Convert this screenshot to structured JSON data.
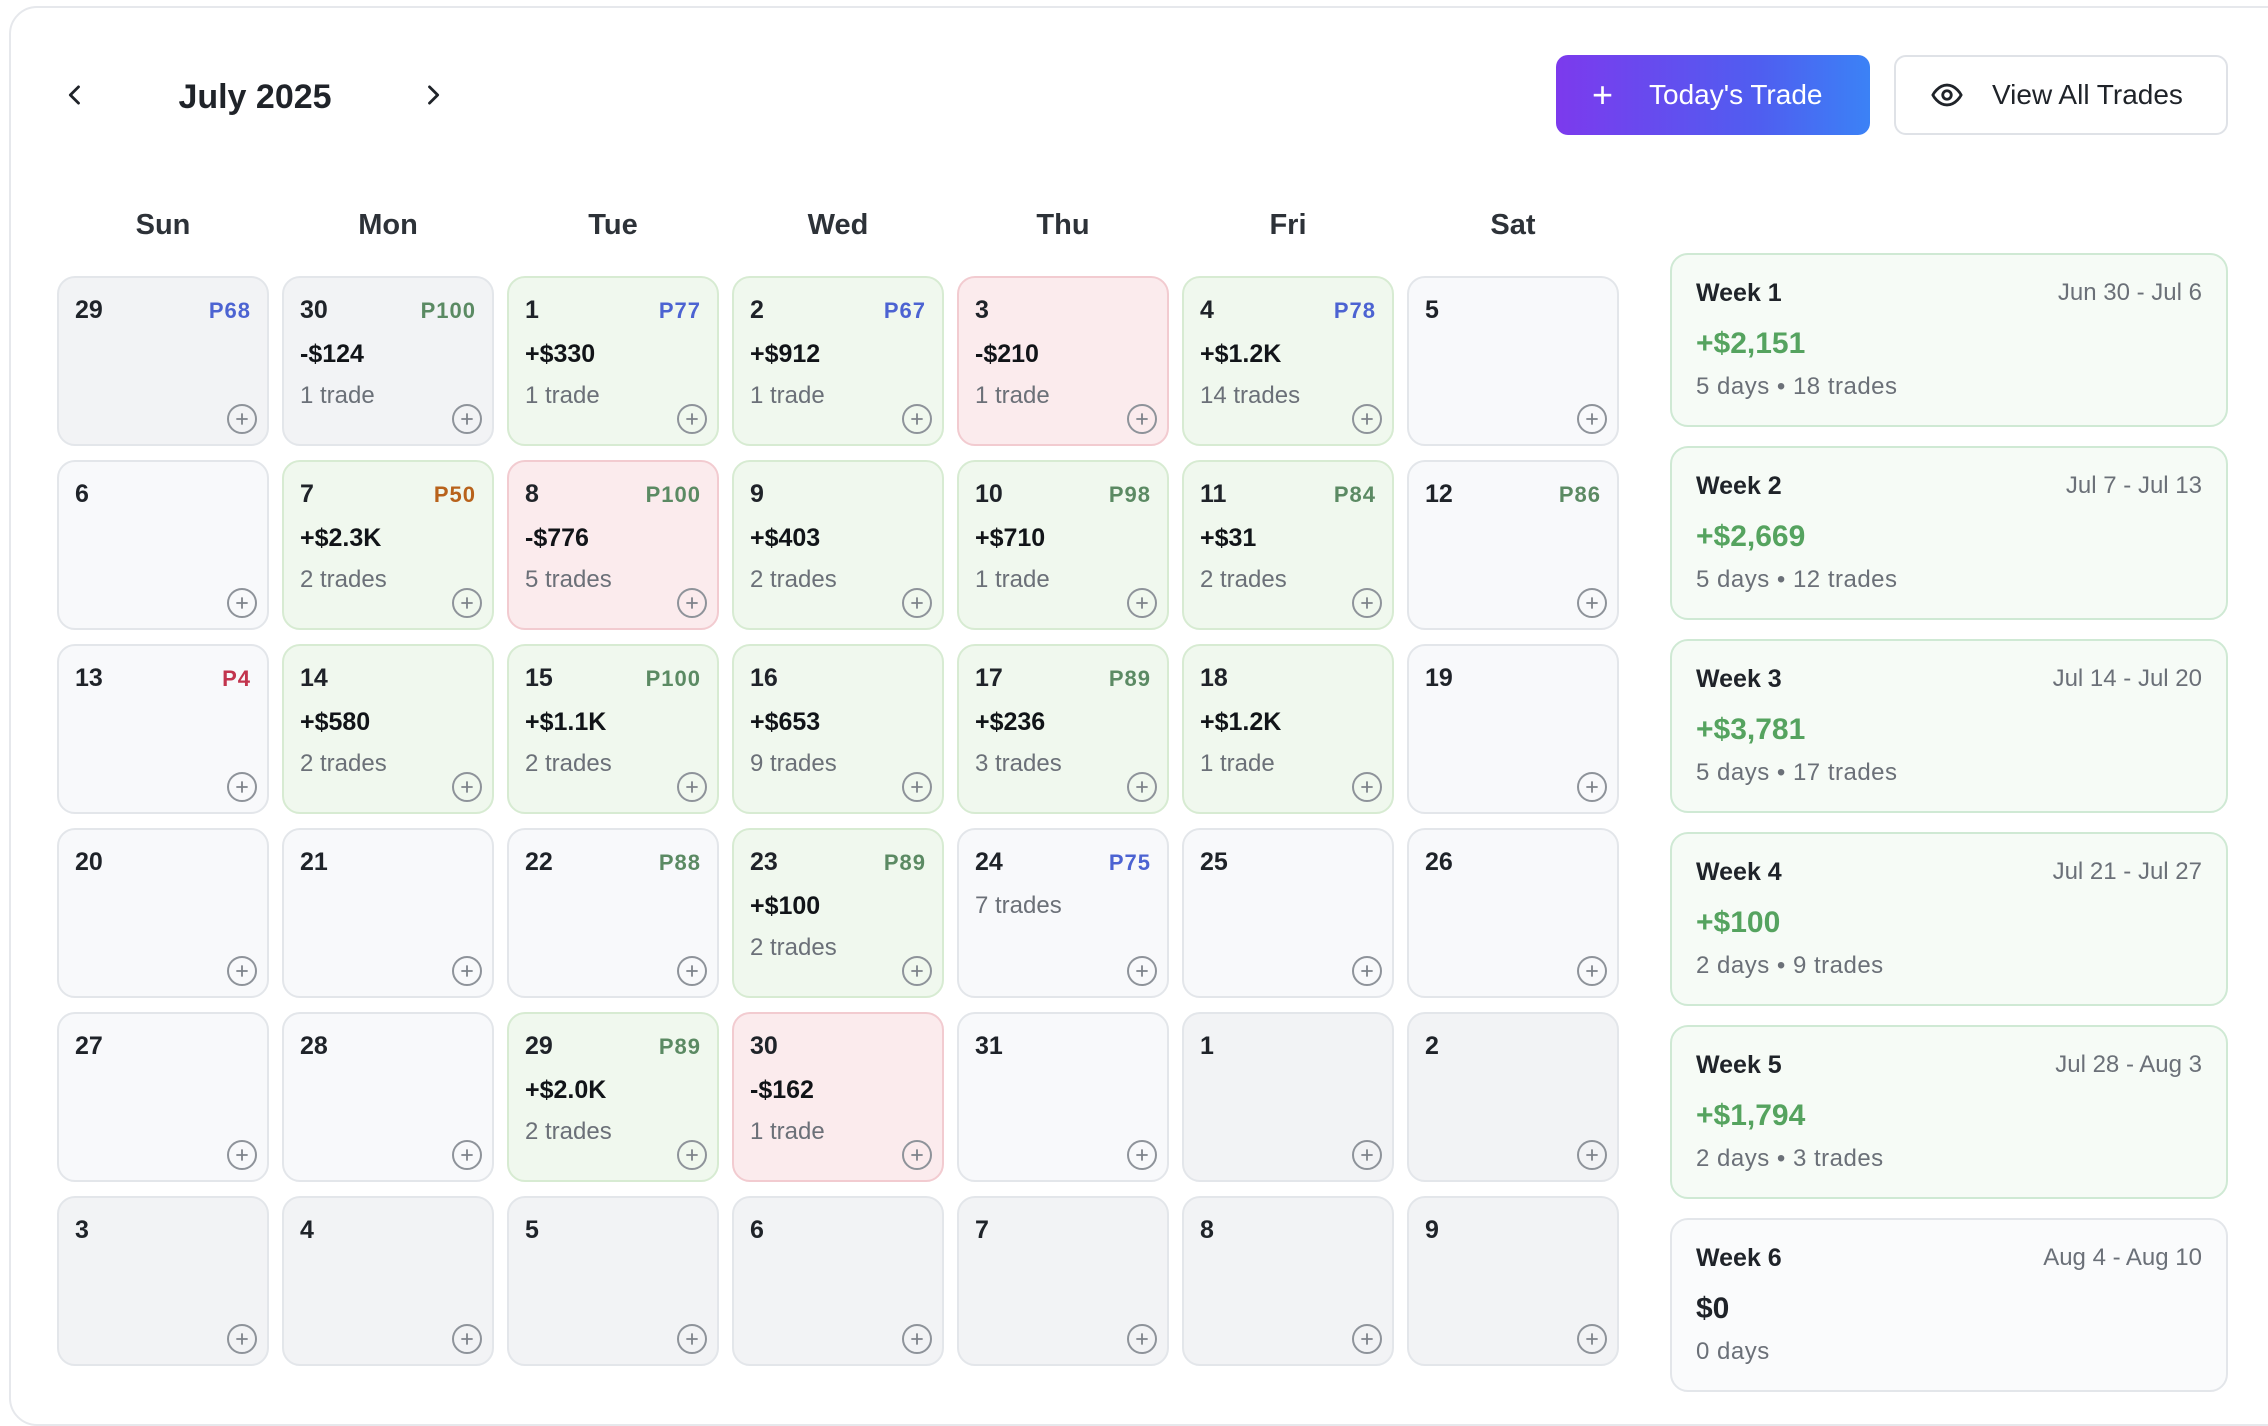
{
  "header": {
    "month_title": "July 2025",
    "todays_trade_label": "Today's Trade",
    "view_all_label": "View All Trades"
  },
  "weekdays": [
    "Sun",
    "Mon",
    "Tue",
    "Wed",
    "Thu",
    "Fri",
    "Sat"
  ],
  "colors": {
    "win_bg": "#f0f8ee",
    "loss_bg": "#fbebed",
    "positive_text": "#55a35f",
    "primary_gradient_start": "#7c3aed",
    "primary_gradient_end": "#3b82f6"
  },
  "calendar": {
    "rows": [
      [
        {
          "day": "29",
          "badge": "P68",
          "badge_color": "blue",
          "pnl": "",
          "trades": "",
          "status": "other"
        },
        {
          "day": "30",
          "badge": "P100",
          "badge_color": "green",
          "pnl": "-$124",
          "trades": "1 trade",
          "status": "other"
        },
        {
          "day": "1",
          "badge": "P77",
          "badge_color": "blue",
          "pnl": "+$330",
          "trades": "1 trade",
          "status": "win"
        },
        {
          "day": "2",
          "badge": "P67",
          "badge_color": "blue",
          "pnl": "+$912",
          "trades": "1 trade",
          "status": "win"
        },
        {
          "day": "3",
          "badge": "",
          "badge_color": "",
          "pnl": "-$210",
          "trades": "1 trade",
          "status": "loss"
        },
        {
          "day": "4",
          "badge": "P78",
          "badge_color": "blue",
          "pnl": "+$1.2K",
          "trades": "14 trades",
          "status": "win"
        },
        {
          "day": "5",
          "badge": "",
          "badge_color": "",
          "pnl": "",
          "trades": "",
          "status": "empty"
        }
      ],
      [
        {
          "day": "6",
          "badge": "",
          "badge_color": "",
          "pnl": "",
          "trades": "",
          "status": "empty"
        },
        {
          "day": "7",
          "badge": "P50",
          "badge_color": "orange",
          "pnl": "+$2.3K",
          "trades": "2 trades",
          "status": "win"
        },
        {
          "day": "8",
          "badge": "P100",
          "badge_color": "green",
          "pnl": "-$776",
          "trades": "5 trades",
          "status": "loss"
        },
        {
          "day": "9",
          "badge": "",
          "badge_color": "",
          "pnl": "+$403",
          "trades": "2 trades",
          "status": "win"
        },
        {
          "day": "10",
          "badge": "P98",
          "badge_color": "green",
          "pnl": "+$710",
          "trades": "1 trade",
          "status": "win"
        },
        {
          "day": "11",
          "badge": "P84",
          "badge_color": "green",
          "pnl": "+$31",
          "trades": "2 trades",
          "status": "win"
        },
        {
          "day": "12",
          "badge": "P86",
          "badge_color": "green",
          "pnl": "",
          "trades": "",
          "status": "empty"
        }
      ],
      [
        {
          "day": "13",
          "badge": "P4",
          "badge_color": "red",
          "pnl": "",
          "trades": "",
          "status": "empty"
        },
        {
          "day": "14",
          "badge": "",
          "badge_color": "",
          "pnl": "+$580",
          "trades": "2 trades",
          "status": "win"
        },
        {
          "day": "15",
          "badge": "P100",
          "badge_color": "green",
          "pnl": "+$1.1K",
          "trades": "2 trades",
          "status": "win"
        },
        {
          "day": "16",
          "badge": "",
          "badge_color": "",
          "pnl": "+$653",
          "trades": "9 trades",
          "status": "win"
        },
        {
          "day": "17",
          "badge": "P89",
          "badge_color": "green",
          "pnl": "+$236",
          "trades": "3 trades",
          "status": "win"
        },
        {
          "day": "18",
          "badge": "",
          "badge_color": "",
          "pnl": "+$1.2K",
          "trades": "1 trade",
          "status": "win"
        },
        {
          "day": "19",
          "badge": "",
          "badge_color": "",
          "pnl": "",
          "trades": "",
          "status": "empty"
        }
      ],
      [
        {
          "day": "20",
          "badge": "",
          "badge_color": "",
          "pnl": "",
          "trades": "",
          "status": "empty"
        },
        {
          "day": "21",
          "badge": "",
          "badge_color": "",
          "pnl": "",
          "trades": "",
          "status": "empty"
        },
        {
          "day": "22",
          "badge": "P88",
          "badge_color": "green",
          "pnl": "",
          "trades": "",
          "status": "empty"
        },
        {
          "day": "23",
          "badge": "P89",
          "badge_color": "green",
          "pnl": "+$100",
          "trades": "2 trades",
          "status": "win"
        },
        {
          "day": "24",
          "badge": "P75",
          "badge_color": "blue",
          "pnl": "",
          "trades": "7 trades",
          "status": "empty"
        },
        {
          "day": "25",
          "badge": "",
          "badge_color": "",
          "pnl": "",
          "trades": "",
          "status": "empty"
        },
        {
          "day": "26",
          "badge": "",
          "badge_color": "",
          "pnl": "",
          "trades": "",
          "status": "empty"
        }
      ],
      [
        {
          "day": "27",
          "badge": "",
          "badge_color": "",
          "pnl": "",
          "trades": "",
          "status": "empty"
        },
        {
          "day": "28",
          "badge": "",
          "badge_color": "",
          "pnl": "",
          "trades": "",
          "status": "empty"
        },
        {
          "day": "29",
          "badge": "P89",
          "badge_color": "green",
          "pnl": "+$2.0K",
          "trades": "2 trades",
          "status": "win"
        },
        {
          "day": "30",
          "badge": "",
          "badge_color": "",
          "pnl": "-$162",
          "trades": "1 trade",
          "status": "loss"
        },
        {
          "day": "31",
          "badge": "",
          "badge_color": "",
          "pnl": "",
          "trades": "",
          "status": "empty"
        },
        {
          "day": "1",
          "badge": "",
          "badge_color": "",
          "pnl": "",
          "trades": "",
          "status": "other"
        },
        {
          "day": "2",
          "badge": "",
          "badge_color": "",
          "pnl": "",
          "trades": "",
          "status": "other"
        }
      ],
      [
        {
          "day": "3",
          "badge": "",
          "badge_color": "",
          "pnl": "",
          "trades": "",
          "status": "other"
        },
        {
          "day": "4",
          "badge": "",
          "badge_color": "",
          "pnl": "",
          "trades": "",
          "status": "other"
        },
        {
          "day": "5",
          "badge": "",
          "badge_color": "",
          "pnl": "",
          "trades": "",
          "status": "other"
        },
        {
          "day": "6",
          "badge": "",
          "badge_color": "",
          "pnl": "",
          "trades": "",
          "status": "other"
        },
        {
          "day": "7",
          "badge": "",
          "badge_color": "",
          "pnl": "",
          "trades": "",
          "status": "other"
        },
        {
          "day": "8",
          "badge": "",
          "badge_color": "",
          "pnl": "",
          "trades": "",
          "status": "other"
        },
        {
          "day": "9",
          "badge": "",
          "badge_color": "",
          "pnl": "",
          "trades": "",
          "status": "other"
        }
      ]
    ]
  },
  "weeks": [
    {
      "name": "Week 1",
      "range": "Jun 30 - Jul 6",
      "pnl": "+$2,151",
      "meta": "5 days • 18 trades",
      "tone": "positive"
    },
    {
      "name": "Week 2",
      "range": "Jul 7 - Jul 13",
      "pnl": "+$2,669",
      "meta": "5 days • 12 trades",
      "tone": "positive"
    },
    {
      "name": "Week 3",
      "range": "Jul 14 - Jul 20",
      "pnl": "+$3,781",
      "meta": "5 days • 17 trades",
      "tone": "positive"
    },
    {
      "name": "Week 4",
      "range": "Jul 21 - Jul 27",
      "pnl": "+$100",
      "meta": "2 days • 9 trades",
      "tone": "positive"
    },
    {
      "name": "Week 5",
      "range": "Jul 28 - Aug 3",
      "pnl": "+$1,794",
      "meta": "2 days • 3 trades",
      "tone": "positive"
    },
    {
      "name": "Week 6",
      "range": "Aug 4 - Aug 10",
      "pnl": "$0",
      "meta": "0 days",
      "tone": "neutral"
    }
  ],
  "icons": {
    "prev": "chevron-left-icon",
    "next": "chevron-right-icon",
    "add": "plus-icon",
    "view": "eye-icon"
  }
}
